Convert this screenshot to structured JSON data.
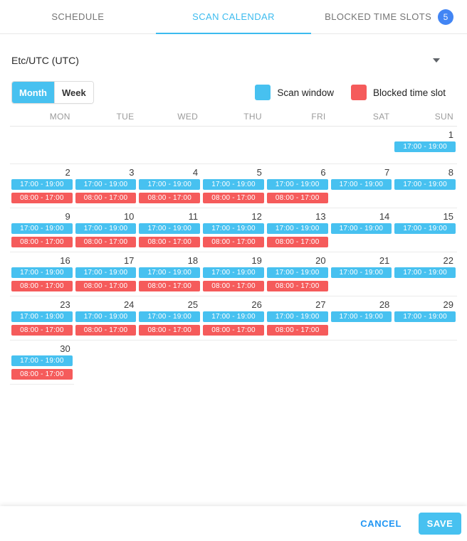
{
  "colors": {
    "scan_window": "#47C1F0",
    "blocked_slot": "#F55B5B",
    "active_tab": "#3CBBEF",
    "cancel_text": "#2196F3",
    "badge": "#4285F4"
  },
  "tabs": {
    "schedule": "SCHEDULE",
    "scan_calendar": "SCAN CALENDAR",
    "blocked_time_slots": "BLOCKED TIME SLOTS",
    "blocked_count": "5"
  },
  "timezone": {
    "selected": "Etc/UTC (UTC)"
  },
  "view_toggle": {
    "month": "Month",
    "week": "Week",
    "active": "Month"
  },
  "legend": {
    "scan": "Scan window",
    "blocked": "Blocked time slot"
  },
  "calendar": {
    "day_headers": [
      "MON",
      "TUE",
      "WED",
      "THU",
      "FRI",
      "SAT",
      "SUN"
    ],
    "scan_label": "17:00 - 19:00",
    "blocked_label": "08:00 - 17:00",
    "weeks": [
      [
        {},
        {},
        {},
        {},
        {},
        {},
        {
          "day": "1",
          "events": [
            "scan"
          ]
        }
      ],
      [
        {
          "day": "2",
          "events": [
            "scan",
            "blocked"
          ]
        },
        {
          "day": "3",
          "events": [
            "scan",
            "blocked"
          ]
        },
        {
          "day": "4",
          "events": [
            "scan",
            "blocked"
          ]
        },
        {
          "day": "5",
          "events": [
            "scan",
            "blocked"
          ]
        },
        {
          "day": "6",
          "events": [
            "scan",
            "blocked"
          ]
        },
        {
          "day": "7",
          "events": [
            "scan"
          ]
        },
        {
          "day": "8",
          "events": [
            "scan"
          ]
        }
      ],
      [
        {
          "day": "9",
          "events": [
            "scan",
            "blocked"
          ]
        },
        {
          "day": "10",
          "events": [
            "scan",
            "blocked"
          ]
        },
        {
          "day": "11",
          "events": [
            "scan",
            "blocked"
          ]
        },
        {
          "day": "12",
          "events": [
            "scan",
            "blocked"
          ]
        },
        {
          "day": "13",
          "events": [
            "scan",
            "blocked"
          ]
        },
        {
          "day": "14",
          "events": [
            "scan"
          ]
        },
        {
          "day": "15",
          "events": [
            "scan"
          ]
        }
      ],
      [
        {
          "day": "16",
          "events": [
            "scan",
            "blocked"
          ]
        },
        {
          "day": "17",
          "events": [
            "scan",
            "blocked"
          ]
        },
        {
          "day": "18",
          "events": [
            "scan",
            "blocked"
          ]
        },
        {
          "day": "19",
          "events": [
            "scan",
            "blocked"
          ]
        },
        {
          "day": "20",
          "events": [
            "scan",
            "blocked"
          ]
        },
        {
          "day": "21",
          "events": [
            "scan"
          ]
        },
        {
          "day": "22",
          "events": [
            "scan"
          ]
        }
      ],
      [
        {
          "day": "23",
          "events": [
            "scan",
            "blocked"
          ]
        },
        {
          "day": "24",
          "events": [
            "scan",
            "blocked"
          ]
        },
        {
          "day": "25",
          "events": [
            "scan",
            "blocked"
          ]
        },
        {
          "day": "26",
          "events": [
            "scan",
            "blocked"
          ]
        },
        {
          "day": "27",
          "events": [
            "scan",
            "blocked"
          ]
        },
        {
          "day": "28",
          "events": [
            "scan"
          ]
        },
        {
          "day": "29",
          "events": [
            "scan"
          ]
        }
      ],
      [
        {
          "day": "30",
          "events": [
            "scan",
            "blocked"
          ]
        },
        null,
        null,
        null,
        null,
        null,
        null
      ]
    ]
  },
  "footer": {
    "cancel": "CANCEL",
    "save": "SAVE"
  }
}
